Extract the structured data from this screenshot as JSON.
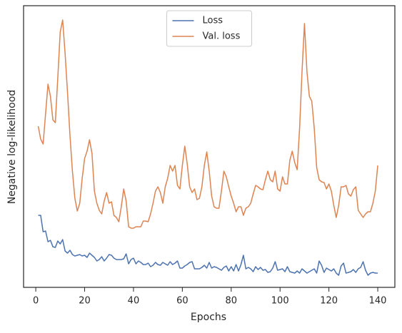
{
  "chart_data": {
    "type": "line",
    "xlabel": "Epochs",
    "ylabel": "Negative log-likelihood",
    "x": [
      1,
      2,
      3,
      4,
      5,
      6,
      7,
      8,
      9,
      10,
      11,
      12,
      13,
      14,
      15,
      16,
      17,
      18,
      19,
      20,
      21,
      22,
      23,
      24,
      25,
      26,
      27,
      28,
      29,
      30,
      31,
      32,
      33,
      34,
      35,
      36,
      37,
      38,
      39,
      40,
      41,
      42,
      43,
      44,
      45,
      46,
      47,
      48,
      49,
      50,
      51,
      52,
      53,
      54,
      55,
      56,
      57,
      58,
      59,
      60,
      61,
      62,
      63,
      64,
      65,
      66,
      67,
      68,
      69,
      70,
      71,
      72,
      73,
      74,
      75,
      76,
      77,
      78,
      79,
      80,
      81,
      82,
      83,
      84,
      85,
      86,
      87,
      88,
      89,
      90,
      91,
      92,
      93,
      94,
      95,
      96,
      97,
      98,
      99,
      100,
      101,
      102,
      103,
      104,
      105,
      106,
      107,
      108,
      109,
      110,
      111,
      112,
      113,
      114,
      115,
      116,
      117,
      118,
      119,
      120,
      121,
      122,
      123,
      124,
      125,
      126,
      127,
      128,
      129,
      130,
      131,
      132,
      133,
      134,
      135,
      136,
      137,
      138,
      139,
      140
    ],
    "series": [
      {
        "name": "Loss",
        "color": "#4c72b0",
        "values": [
          101,
          101,
          78,
          79,
          64,
          66,
          57,
          56,
          65,
          61,
          67,
          51,
          48,
          52,
          46,
          44,
          45,
          46,
          44,
          45,
          42,
          48,
          45,
          42,
          37,
          39,
          43,
          37,
          41,
          46,
          45,
          41,
          39,
          39,
          39,
          40,
          47,
          33,
          39,
          41,
          33,
          37,
          35,
          32,
          32,
          34,
          29,
          31,
          35,
          32,
          31,
          35,
          33,
          31,
          36,
          32,
          34,
          37,
          27,
          27,
          30,
          32,
          35,
          36,
          26,
          26,
          26,
          28,
          31,
          27,
          35,
          27,
          29,
          28,
          26,
          24,
          28,
          30,
          23,
          29,
          23,
          32,
          23,
          32,
          45,
          26,
          28,
          26,
          22,
          29,
          25,
          28,
          24,
          25,
          21,
          22,
          27,
          36,
          24,
          25,
          26,
          22,
          29,
          22,
          21,
          20,
          23,
          20,
          26,
          23,
          20,
          22,
          24,
          26,
          20,
          37,
          31,
          21,
          27,
          25,
          23,
          26,
          20,
          17,
          30,
          34,
          20,
          21,
          22,
          25,
          21,
          26,
          28,
          36,
          24,
          17,
          20,
          21,
          20,
          20
        ]
      },
      {
        "name": "Val. loss",
        "color": "#dd8452",
        "values": [
          226,
          208,
          201,
          243,
          285,
          268,
          235,
          231,
          293,
          358,
          375,
          328,
          273,
          213,
          163,
          125,
          107,
          118,
          153,
          181,
          191,
          207,
          188,
          135,
          118,
          108,
          103,
          121,
          133,
          118,
          120,
          101,
          98,
          92,
          113,
          138,
          121,
          85,
          83,
          83,
          85,
          85,
          85,
          93,
          93,
          92,
          103,
          118,
          135,
          141,
          133,
          118,
          141,
          153,
          171,
          163,
          171,
          143,
          138,
          171,
          198,
          173,
          141,
          133,
          138,
          123,
          125,
          141,
          171,
          190,
          163,
          128,
          113,
          111,
          111,
          135,
          163,
          155,
          141,
          128,
          118,
          106,
          113,
          113,
          101,
          111,
          113,
          118,
          131,
          143,
          141,
          138,
          137,
          151,
          163,
          151,
          148,
          163,
          138,
          135,
          155,
          145,
          145,
          178,
          191,
          175,
          165,
          223,
          303,
          370,
          303,
          268,
          261,
          223,
          168,
          151,
          148,
          147,
          138,
          145,
          135,
          115,
          98,
          115,
          141,
          141,
          143,
          131,
          128,
          137,
          141,
          108,
          103,
          98,
          103,
          106,
          106,
          118,
          135,
          171
        ]
      }
    ],
    "xlim": [
      -5,
      147
    ],
    "xticks": [
      0,
      20,
      40,
      60,
      80,
      100,
      120,
      140
    ],
    "ylim": [
      0,
      395
    ],
    "legend": "upper center"
  }
}
